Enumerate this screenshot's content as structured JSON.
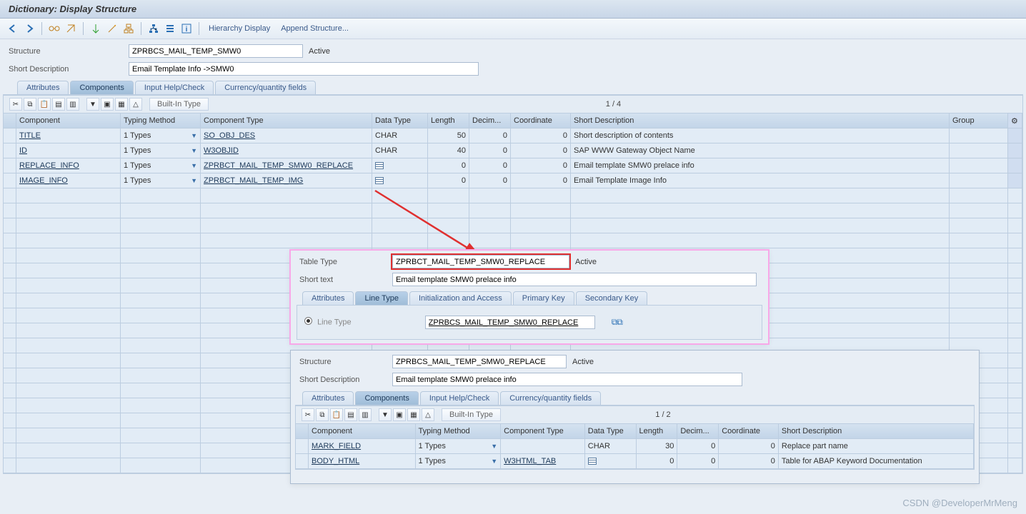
{
  "title": "Dictionary: Display Structure",
  "toolbar_text": {
    "hierarchy": "Hierarchy Display",
    "append": "Append Structure..."
  },
  "header": {
    "structure_label": "Structure",
    "structure_value": "ZPRBCS_MAIL_TEMP_SMW0",
    "structure_status": "Active",
    "shortdesc_label": "Short Description",
    "shortdesc_value": "Email Template Info ->SMW0"
  },
  "tabs": {
    "attributes": "Attributes",
    "components": "Components",
    "inputhelp": "Input Help/Check",
    "currency": "Currency/quantity fields"
  },
  "grid_toolbar": {
    "builtin": "Built-In Type",
    "counter": "1  /  4"
  },
  "grid_headers": {
    "component": "Component",
    "typingmethod": "Typing Method",
    "componenttype": "Component Type",
    "datatype": "Data Type",
    "length": "Length",
    "decim": "Decim...",
    "coord": "Coordinate",
    "shortdesc": "Short Description",
    "group": "Group"
  },
  "rows": [
    {
      "comp": "TITLE",
      "tm": "1 Types",
      "ct": "SO_OBJ_DES",
      "dt": "CHAR",
      "len": "50",
      "dec": "0",
      "coord": "0",
      "sd": "Short description of contents",
      "icon": false
    },
    {
      "comp": "ID",
      "tm": "1 Types",
      "ct": "W3OBJID",
      "dt": "CHAR",
      "len": "40",
      "dec": "0",
      "coord": "0",
      "sd": "SAP WWW Gateway Object Name",
      "icon": false
    },
    {
      "comp": "REPLACE_INFO",
      "tm": "1 Types",
      "ct": "ZPRBCT_MAIL_TEMP_SMW0_REPLACE",
      "dt": "",
      "len": "0",
      "dec": "0",
      "coord": "0",
      "sd": "Email template SMW0 prelace info",
      "icon": true
    },
    {
      "comp": "IMAGE_INFO",
      "tm": "1 Types",
      "ct": "ZPRBCT_MAIL_TEMP_IMG",
      "dt": "",
      "len": "0",
      "dec": "0",
      "coord": "0",
      "sd": "Email Template Image Info",
      "icon": true
    }
  ],
  "popup1": {
    "tabletype_label": "Table Type",
    "tabletype_value": "ZPRBCT_MAIL_TEMP_SMW0_REPLACE",
    "tabletype_status": "Active",
    "shorttext_label": "Short text",
    "shorttext_value": "Email template SMW0 prelace info",
    "tabs": {
      "attributes": "Attributes",
      "linetype": "Line Type",
      "init": "Initialization and Access",
      "pk": "Primary Key",
      "sk": "Secondary Key"
    },
    "linetype_label": "Line Type",
    "linetype_value": "ZPRBCS_MAIL_TEMP_SMW0_REPLACE"
  },
  "popup2": {
    "structure_label": "Structure",
    "structure_value": "ZPRBCS_MAIL_TEMP_SMW0_REPLACE",
    "structure_status": "Active",
    "shortdesc_label": "Short Description",
    "shortdesc_value": "Email template SMW0 prelace info",
    "grid_toolbar": {
      "builtin": "Built-In Type",
      "counter": "1  /  2"
    },
    "rows": [
      {
        "comp": "MARK_FIELD",
        "tm": "1 Types",
        "ct": "",
        "dt": "CHAR",
        "len": "30",
        "dec": "0",
        "coord": "0",
        "sd": "Replace part name",
        "icon": false
      },
      {
        "comp": "BODY_HTML",
        "tm": "1 Types",
        "ct": "W3HTML_TAB",
        "dt": "",
        "len": "0",
        "dec": "0",
        "coord": "0",
        "sd": "Table for ABAP Keyword Documentation",
        "icon": true
      }
    ]
  },
  "watermark": "CSDN @DeveloperMrMeng",
  "colors": {
    "arrow": "#e03030"
  }
}
